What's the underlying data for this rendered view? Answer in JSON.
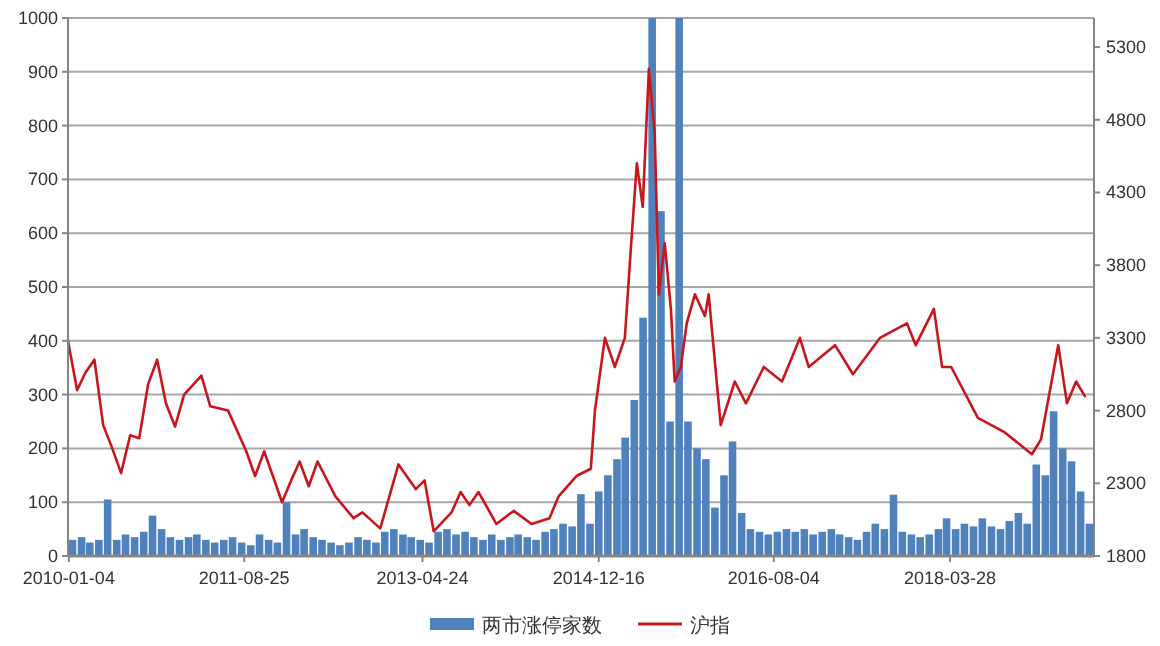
{
  "chart_data": {
    "type": "bar",
    "series": [
      {
        "name": "两市涨停家数",
        "color": "#4f81bd",
        "x": [
          "2010-01",
          "2010-02",
          "2010-03",
          "2010-04",
          "2010-05",
          "2010-06",
          "2010-07",
          "2010-08",
          "2010-09",
          "2010-10",
          "2010-11",
          "2010-12",
          "2011-01",
          "2011-02",
          "2011-03",
          "2011-04",
          "2011-05",
          "2011-06",
          "2011-07",
          "2011-08",
          "2011-09",
          "2011-10",
          "2011-11",
          "2011-12",
          "2012-01",
          "2012-02",
          "2012-03",
          "2012-04",
          "2012-05",
          "2012-06",
          "2012-07",
          "2012-08",
          "2012-09",
          "2012-10",
          "2012-11",
          "2012-12",
          "2013-01",
          "2013-02",
          "2013-03",
          "2013-04",
          "2013-05",
          "2013-06",
          "2013-07",
          "2013-08",
          "2013-09",
          "2013-10",
          "2013-11",
          "2013-12",
          "2014-01",
          "2014-02",
          "2014-03",
          "2014-04",
          "2014-05",
          "2014-06",
          "2014-07",
          "2014-08",
          "2014-09",
          "2014-10",
          "2014-11",
          "2014-12",
          "2015-01",
          "2015-02",
          "2015-03",
          "2015-04",
          "2015-05",
          "2015-06",
          "2015-07",
          "2015-08",
          "2015-09",
          "2015-10",
          "2015-11",
          "2015-12",
          "2016-01",
          "2016-02",
          "2016-03",
          "2016-04",
          "2016-05",
          "2016-06",
          "2016-07",
          "2016-08",
          "2016-09",
          "2016-10",
          "2016-11",
          "2016-12",
          "2017-01",
          "2017-02",
          "2017-03",
          "2017-04",
          "2017-05",
          "2017-06",
          "2017-07",
          "2017-08",
          "2017-09",
          "2017-10",
          "2017-11",
          "2017-12",
          "2018-01",
          "2018-02",
          "2018-03",
          "2018-04",
          "2018-05",
          "2018-06",
          "2018-07",
          "2018-08",
          "2018-09",
          "2018-10",
          "2018-11",
          "2018-12",
          "2019-01",
          "2019-02",
          "2019-03",
          "2019-04",
          "2019-05",
          "2019-06",
          "2019-07"
        ],
        "values": [
          30,
          35,
          25,
          30,
          105,
          30,
          40,
          35,
          45,
          75,
          50,
          35,
          30,
          35,
          40,
          30,
          25,
          30,
          35,
          25,
          20,
          40,
          30,
          25,
          100,
          40,
          50,
          35,
          30,
          25,
          20,
          25,
          35,
          30,
          25,
          45,
          50,
          40,
          35,
          30,
          25,
          45,
          50,
          40,
          45,
          35,
          30,
          40,
          30,
          35,
          40,
          35,
          30,
          45,
          50,
          60,
          55,
          115,
          60,
          120,
          150,
          180,
          220,
          290,
          443,
          1000,
          641,
          250,
          1000,
          250,
          200,
          180,
          90,
          150,
          213,
          80,
          50,
          45,
          40,
          45,
          50,
          45,
          50,
          40,
          45,
          50,
          40,
          35,
          30,
          45,
          60,
          50,
          114,
          45,
          40,
          35,
          40,
          50,
          70,
          50,
          60,
          55,
          70,
          55,
          50,
          65,
          80,
          60,
          170,
          150,
          269,
          200,
          176,
          120,
          60
        ]
      },
      {
        "name": "沪指",
        "type": "line",
        "axis": "y2",
        "color": "#c8161d",
        "x": [
          "2010-01",
          "2010-02",
          "2010-03",
          "2010-04",
          "2010-05",
          "2010-06",
          "2010-07",
          "2010-08",
          "2010-09",
          "2010-10",
          "2010-11",
          "2010-12",
          "2011-01",
          "2011-02",
          "2011-04",
          "2011-05",
          "2011-07",
          "2011-09",
          "2011-10",
          "2011-11",
          "2012-01",
          "2012-02",
          "2012-03",
          "2012-04",
          "2012-05",
          "2012-07",
          "2012-09",
          "2012-10",
          "2012-12",
          "2013-02",
          "2013-04",
          "2013-05",
          "2013-06",
          "2013-08",
          "2013-09",
          "2013-10",
          "2013-11",
          "2014-01",
          "2014-03",
          "2014-05",
          "2014-07",
          "2014-08",
          "2014-10",
          "2014-11-19",
          "2014-12-03",
          "2015-01-06",
          "2015-02-09",
          "2015-03-15",
          "2015-04-04",
          "2015-04-25",
          "2015-05-15",
          "2015-06-05",
          "2015-06-25",
          "2015-07-09",
          "2015-07-29",
          "2015-08-19",
          "2015-09-01",
          "2015-09-22",
          "2015-10-12",
          "2015-11-09",
          "2015-12-13",
          "2015-12-26",
          "2016-02-05",
          "2016-03-24",
          "2016-05",
          "2016-07",
          "2016-09",
          "2016-11",
          "2016-12",
          "2017-03",
          "2017-05",
          "2017-08",
          "2017-11",
          "2017-12",
          "2018-02",
          "2018-03",
          "2018-04",
          "2018-07",
          "2018-10",
          "2019-01",
          "2019-02",
          "2019-04",
          "2019-05",
          "2019-06",
          "2019-07"
        ],
        "values": [
          3280,
          2940,
          3060,
          3150,
          2700,
          2540,
          2370,
          2630,
          2610,
          2980,
          3150,
          2850,
          2690,
          2910,
          3040,
          2830,
          2800,
          2520,
          2350,
          2520,
          2170,
          2320,
          2450,
          2280,
          2450,
          2210,
          2060,
          2100,
          1990,
          2430,
          2260,
          2320,
          1970,
          2100,
          2240,
          2150,
          2240,
          2020,
          2110,
          2020,
          2060,
          2210,
          2350,
          2400,
          2800,
          3300,
          3100,
          3300,
          3900,
          4500,
          4200,
          5150,
          4700,
          3600,
          3950,
          3500,
          3000,
          3100,
          3400,
          3600,
          3450,
          3600,
          2700,
          3000,
          2850,
          3100,
          3000,
          3300,
          3100,
          3250,
          3050,
          3300,
          3400,
          3250,
          3500,
          3100,
          3100,
          2750,
          2650,
          2500,
          2600,
          3250,
          2850,
          3000,
          2900
        ]
      }
    ],
    "xlim": [
      "2010-01-01",
      "2019-08-01"
    ],
    "xticks": [
      "2010-01-04",
      "2011-08-25",
      "2013-04-24",
      "2014-12-16",
      "2016-08-04",
      "2018-03-28"
    ],
    "ylim": [
      0,
      1000
    ],
    "yticks": [
      0,
      100,
      200,
      300,
      400,
      500,
      600,
      700,
      800,
      900,
      1000
    ],
    "y2lim": [
      1800,
      5500
    ],
    "y2ticks": [
      1800,
      2300,
      2800,
      3300,
      3800,
      4300,
      4800,
      5300
    ],
    "grid": "y",
    "legend": "bottom"
  }
}
